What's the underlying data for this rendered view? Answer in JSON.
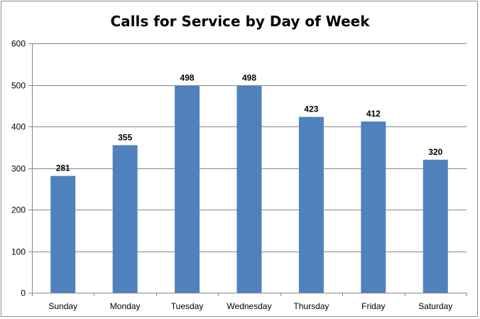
{
  "chart_data": {
    "type": "bar",
    "title": "Calls for Service by Day of Week",
    "xlabel": "",
    "ylabel": "",
    "categories": [
      "Sunday",
      "Monday",
      "Tuesday",
      "Wednesday",
      "Thursday",
      "Friday",
      "Saturday"
    ],
    "values": [
      281,
      355,
      498,
      498,
      423,
      412,
      320
    ],
    "data_labels": [
      "281",
      "355",
      "498",
      "498",
      "423",
      "412",
      "320"
    ],
    "ylim": [
      0,
      600
    ],
    "yticks": [
      0,
      100,
      200,
      300,
      400,
      500,
      600
    ],
    "ytick_labels": [
      "0",
      "100",
      "200",
      "300",
      "400",
      "500",
      "600"
    ],
    "grid": true,
    "legend": "none",
    "colors": {
      "bar": "#4f81bd",
      "grid": "#868686",
      "axis": "#868686"
    }
  }
}
